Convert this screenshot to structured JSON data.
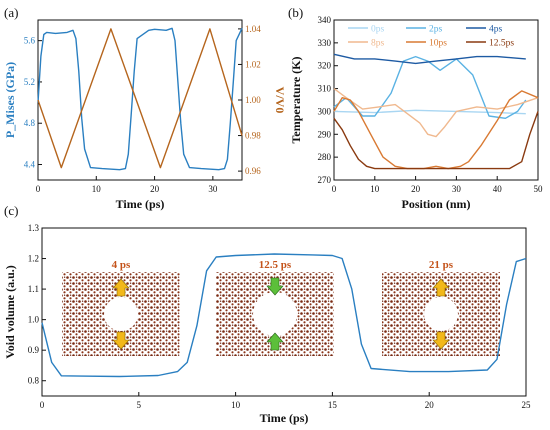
{
  "chart_data": [
    {
      "type": "line",
      "panel_label": "(a)",
      "xlabel": "Time (ps)",
      "ylabel_left": "P_Mises (GPa)",
      "ylabel_right": "V/V0",
      "xlim": [
        0,
        35
      ],
      "ylim_left": [
        4.25,
        5.8
      ],
      "ylim_right": [
        0.955,
        1.045
      ],
      "xticks": [
        "0",
        "10",
        "20",
        "30"
      ],
      "yticks_left": [
        "4.4",
        "4.8",
        "5.2",
        "5.6"
      ],
      "yticks_right": [
        "0.96",
        "0.98",
        "1.00",
        "1.02",
        "1.04"
      ],
      "series": [
        {
          "axis": "left",
          "color": "#2a7fc1",
          "x": [
            0,
            0.5,
            1,
            1.5,
            3,
            5,
            6,
            6.5,
            7,
            7.5,
            8,
            9,
            11,
            14,
            15,
            15.5,
            16,
            16.5,
            17,
            19,
            20,
            22,
            23,
            23.5,
            24,
            24.5,
            25,
            26,
            28,
            31,
            32,
            32.5,
            33,
            33.5,
            34,
            35
          ],
          "values": [
            5.0,
            5.45,
            5.66,
            5.68,
            5.67,
            5.68,
            5.7,
            5.62,
            5.3,
            4.85,
            4.55,
            4.37,
            4.36,
            4.35,
            4.36,
            4.5,
            4.9,
            5.3,
            5.62,
            5.7,
            5.71,
            5.7,
            5.72,
            5.6,
            5.2,
            4.8,
            4.5,
            4.37,
            4.36,
            4.35,
            4.36,
            4.45,
            4.8,
            5.2,
            5.6,
            5.72
          ]
        },
        {
          "axis": "right",
          "color": "#b5651d",
          "x": [
            0,
            4,
            12.5,
            21,
            29.5,
            35
          ],
          "values": [
            1.0,
            0.962,
            1.04,
            0.962,
            1.04,
            0.98
          ]
        }
      ]
    },
    {
      "type": "line",
      "panel_label": "(b)",
      "xlabel": "Position (nm)",
      "ylabel": "Temperature (K)",
      "xlim": [
        0,
        50
      ],
      "ylim": [
        270,
        340
      ],
      "xticks": [
        "0",
        "10",
        "20",
        "30",
        "40",
        "50"
      ],
      "yticks": [
        "270",
        "280",
        "290",
        "300",
        "310",
        "320",
        "330",
        "340"
      ],
      "legend_position": "top-right",
      "series": [
        {
          "name": "0ps",
          "color": "#a9d6f2",
          "x": [
            0,
            10,
            20,
            30,
            40,
            47
          ],
          "values": [
            300,
            299.5,
            300.5,
            300,
            299.5,
            299
          ]
        },
        {
          "name": "2ps",
          "color": "#5ab2e3",
          "x": [
            0,
            3,
            7,
            10,
            14,
            17,
            20,
            23,
            26,
            30,
            34,
            38,
            42,
            45,
            47
          ],
          "values": [
            302,
            306,
            298,
            298,
            308,
            322,
            324,
            322,
            318,
            323,
            316,
            298,
            297,
            300,
            305
          ]
        },
        {
          "name": "4ps",
          "color": "#1d5aa3",
          "x": [
            0,
            5,
            10,
            15,
            20,
            25,
            30,
            35,
            40,
            47
          ],
          "values": [
            325,
            323,
            323,
            322,
            321,
            322,
            323,
            324,
            324,
            323
          ]
        },
        {
          "name": "8ps",
          "color": "#f0b98f",
          "x": [
            0,
            3,
            7,
            11,
            15,
            18,
            21,
            23,
            25,
            27,
            30,
            35,
            40,
            45,
            50
          ],
          "values": [
            310,
            306,
            301,
            302,
            303,
            299,
            295,
            290,
            289,
            293,
            300,
            302,
            301,
            303,
            306
          ]
        },
        {
          "name": "10ps",
          "color": "#d97a33",
          "x": [
            0,
            2,
            4,
            6,
            9,
            12,
            15,
            18,
            22,
            25,
            28,
            31,
            33,
            36,
            40,
            43,
            46,
            50
          ],
          "values": [
            300,
            306,
            305,
            300,
            290,
            280,
            276,
            275,
            275,
            276,
            275,
            276,
            278,
            285,
            296,
            305,
            309,
            306
          ]
        },
        {
          "name": "12.5ps",
          "color": "#8a3a10",
          "x": [
            0,
            2,
            4,
            6,
            8,
            10,
            14,
            20,
            25,
            30,
            35,
            40,
            43,
            46,
            48,
            50
          ],
          "values": [
            297,
            292,
            285,
            279,
            276,
            275,
            275,
            275,
            275,
            275,
            275,
            275,
            275,
            278,
            290,
            300
          ]
        }
      ]
    },
    {
      "type": "line",
      "panel_label": "(c)",
      "xlabel": "Time (ps)",
      "ylabel": "Void volume (a.u.)",
      "xlim": [
        0,
        25
      ],
      "ylim": [
        0.75,
        1.3
      ],
      "xticks": [
        "0",
        "5",
        "10",
        "15",
        "20",
        "25"
      ],
      "yticks": [
        "0.8",
        "0.9",
        "1.0",
        "1.1",
        "1.2",
        "1.3"
      ],
      "series": [
        {
          "color": "#2a7fc1",
          "x": [
            0,
            0.5,
            1,
            2,
            4,
            6,
            7,
            7.5,
            8,
            8.5,
            9,
            10,
            12,
            14,
            15,
            15.5,
            16,
            16.5,
            17,
            19,
            21,
            23,
            23.5,
            24,
            24.5,
            25
          ],
          "values": [
            0.99,
            0.86,
            0.816,
            0.815,
            0.814,
            0.817,
            0.83,
            0.86,
            0.98,
            1.16,
            1.205,
            1.21,
            1.215,
            1.212,
            1.21,
            1.2,
            1.1,
            0.92,
            0.84,
            0.83,
            0.83,
            0.835,
            0.87,
            1.05,
            1.19,
            1.2
          ]
        }
      ],
      "insets": [
        {
          "label": "4 ps",
          "arrow_color": "#f2b81a",
          "arrow_direction": "outward"
        },
        {
          "label": "12.5 ps",
          "arrow_color": "#5cbf3a",
          "arrow_direction": "inward"
        },
        {
          "label": "21 ps",
          "arrow_color": "#f2b81a",
          "arrow_direction": "outward"
        }
      ]
    }
  ],
  "colors": {
    "axis": "#111111",
    "void_fill": "#ffffff",
    "atom": "#7a2a12"
  }
}
